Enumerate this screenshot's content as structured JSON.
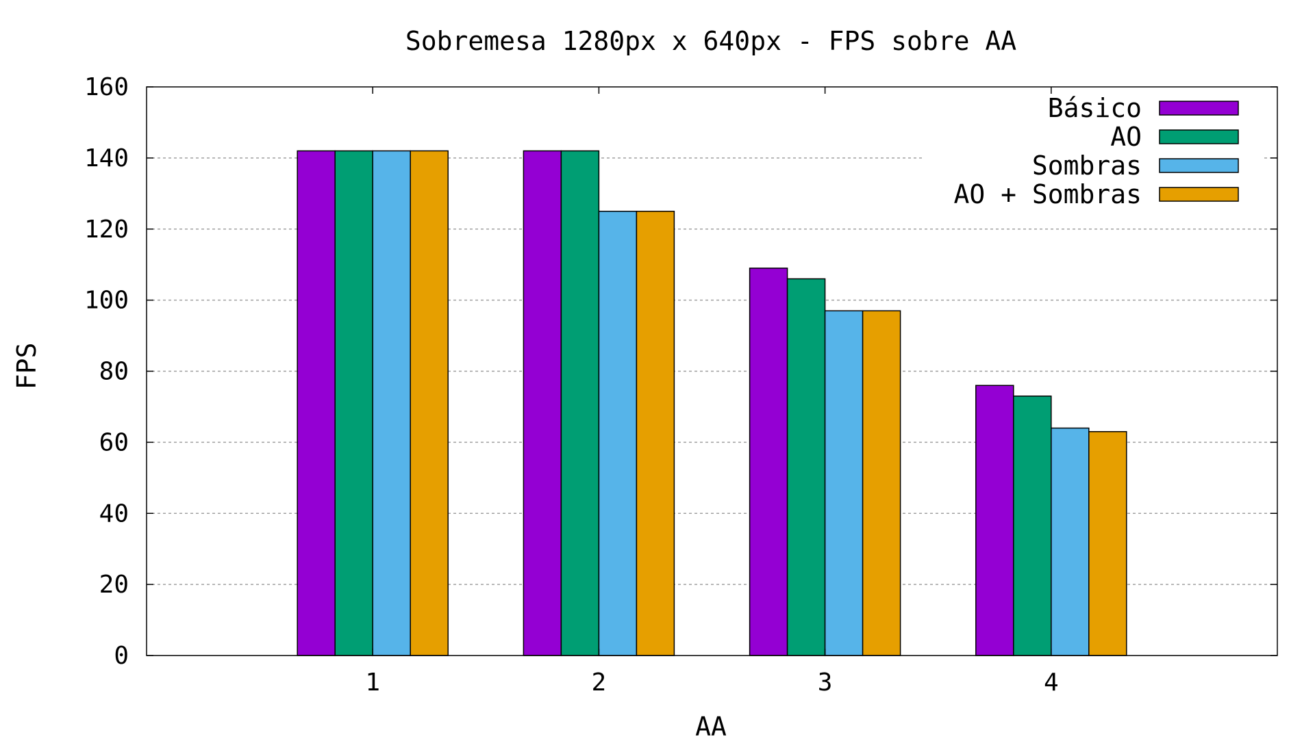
{
  "chart_data": {
    "type": "bar",
    "title": "Sobremesa 1280px x 640px - FPS sobre AA",
    "xlabel": "AA",
    "ylabel": "FPS",
    "categories": [
      "1",
      "2",
      "3",
      "4"
    ],
    "ylim": [
      0,
      160
    ],
    "yticks": [
      "0",
      "20",
      "40",
      "60",
      "80",
      "100",
      "120",
      "140",
      "160"
    ],
    "grid": true,
    "legend_position": "top-right",
    "series": [
      {
        "name": "Básico",
        "color": "#9400d3",
        "values": [
          142,
          142,
          109,
          76
        ]
      },
      {
        "name": "AO",
        "color": "#009e73",
        "values": [
          142,
          142,
          106,
          73
        ]
      },
      {
        "name": "Sombras",
        "color": "#56b4e9",
        "values": [
          142,
          125,
          97,
          64
        ]
      },
      {
        "name": "AO + Sombras",
        "color": "#e69f00",
        "values": [
          142,
          125,
          97,
          63
        ]
      }
    ]
  }
}
